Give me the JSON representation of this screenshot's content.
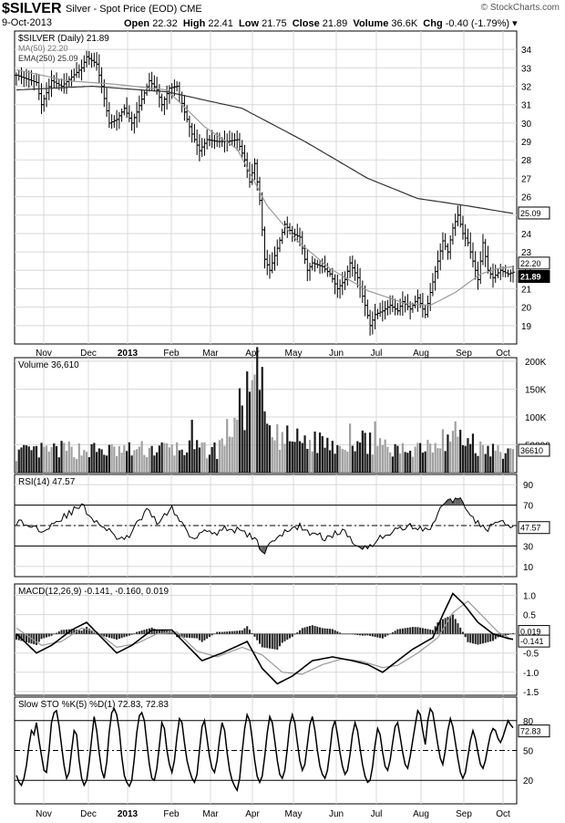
{
  "header": {
    "symbol": "$SILVER",
    "description": "Silver - Spot Price (EOD)",
    "exchange": "CME",
    "date": "9-Oct-2013",
    "open_label": "Open",
    "open": "22.32",
    "high_label": "High",
    "high": "22.41",
    "low_label": "Low",
    "low": "21.75",
    "close_label": "Close",
    "close": "21.89",
    "volume_label": "Volume",
    "volume": "36.6K",
    "chg_label": "Chg",
    "chg": "-0.40 (-1.79%)",
    "credit": "© StockCharts.com"
  },
  "colors": {
    "price": "#000000",
    "ma50": "#9a9a9a",
    "ema250": "#333333",
    "volume_up": "#a0a0a0",
    "volume_down": "#1a1a1a",
    "rsi_fill": "#666666",
    "grid": "#d8d8d8"
  },
  "chart_data": [
    {
      "type": "line",
      "title": "$SILVER (Daily) 21.89",
      "legend": [
        "MA(50) 22.20",
        "EMA(250) 25.09"
      ],
      "ylim": [
        18,
        35
      ],
      "yticks": [
        19,
        20,
        21,
        22,
        23,
        24,
        25,
        26,
        27,
        28,
        29,
        30,
        31,
        32,
        33,
        34
      ],
      "x_month_labels": [
        "Nov",
        "Dec",
        "2013",
        "Feb",
        "Mar",
        "Apr",
        "May",
        "Jun",
        "Jul",
        "Aug",
        "Sep",
        "Oct"
      ],
      "price_anchors": [
        [
          0,
          32.6
        ],
        [
          8,
          32.2
        ],
        [
          10,
          31.0
        ],
        [
          14,
          32.3
        ],
        [
          18,
          32.0
        ],
        [
          22,
          32.5
        ],
        [
          26,
          33.0
        ],
        [
          28,
          33.6
        ],
        [
          32,
          33.2
        ],
        [
          34,
          32.0
        ],
        [
          37,
          30.0
        ],
        [
          40,
          30.2
        ],
        [
          43,
          30.8
        ],
        [
          46,
          30.0
        ],
        [
          48,
          30.6
        ],
        [
          50,
          31.3
        ],
        [
          53,
          32.3
        ],
        [
          56,
          31.8
        ],
        [
          58,
          31.0
        ],
        [
          61,
          31.9
        ],
        [
          64,
          32.0
        ],
        [
          67,
          30.6
        ],
        [
          70,
          29.4
        ],
        [
          73,
          28.5
        ],
        [
          76,
          29.1
        ],
        [
          80,
          29.0
        ],
        [
          84,
          29.0
        ],
        [
          88,
          29.1
        ],
        [
          91,
          28.0
        ],
        [
          93,
          26.8
        ],
        [
          95,
          27.8
        ],
        [
          97,
          25.8
        ],
        [
          99,
          22.6
        ],
        [
          101,
          22.0
        ],
        [
          104,
          23.2
        ],
        [
          107,
          24.5
        ],
        [
          110,
          24.0
        ],
        [
          113,
          23.8
        ],
        [
          116,
          22.0
        ],
        [
          118,
          22.4
        ],
        [
          120,
          22.3
        ],
        [
          122,
          22.2
        ],
        [
          125,
          21.8
        ],
        [
          128,
          21.0
        ],
        [
          131,
          21.5
        ],
        [
          133,
          22.4
        ],
        [
          136,
          21.6
        ],
        [
          139,
          20.1
        ],
        [
          141,
          19.0
        ],
        [
          143,
          19.6
        ],
        [
          146,
          19.8
        ],
        [
          149,
          20.1
        ],
        [
          152,
          19.8
        ],
        [
          154,
          20.3
        ],
        [
          157,
          19.9
        ],
        [
          160,
          20.5
        ],
        [
          163,
          19.6
        ],
        [
          165,
          20.8
        ],
        [
          168,
          22.5
        ],
        [
          170,
          23.6
        ],
        [
          172,
          23.0
        ],
        [
          174,
          24.3
        ],
        [
          176,
          25.0
        ],
        [
          178,
          24.0
        ],
        [
          180,
          23.5
        ],
        [
          182,
          22.5
        ],
        [
          184,
          21.5
        ],
        [
          186,
          23.5
        ],
        [
          188,
          22.0
        ],
        [
          190,
          21.6
        ],
        [
          193,
          22.0
        ],
        [
          196,
          21.8
        ],
        [
          198,
          21.9
        ]
      ],
      "ma50_anchors": [
        [
          0,
          32.9
        ],
        [
          20,
          32.3
        ],
        [
          40,
          32.1
        ],
        [
          60,
          31.8
        ],
        [
          75,
          29.8
        ],
        [
          88,
          28.6
        ],
        [
          100,
          25.5
        ],
        [
          112,
          23.6
        ],
        [
          125,
          22.1
        ],
        [
          140,
          20.9
        ],
        [
          155,
          20.2
        ],
        [
          165,
          20.1
        ],
        [
          175,
          20.8
        ],
        [
          185,
          21.8
        ],
        [
          192,
          22.1
        ],
        [
          198,
          22.2
        ]
      ],
      "ema250_anchors": [
        [
          0,
          31.8
        ],
        [
          30,
          32.0
        ],
        [
          60,
          31.7
        ],
        [
          90,
          30.8
        ],
        [
          115,
          29.0
        ],
        [
          140,
          27.0
        ],
        [
          160,
          25.9
        ],
        [
          180,
          25.5
        ],
        [
          198,
          25.09
        ]
      ],
      "last_labels": [
        "25.09",
        "22.20",
        "21.89"
      ]
    },
    {
      "type": "bar",
      "title": "Volume 36,610",
      "yticks": [
        "200K",
        "150K",
        "100K",
        "50000"
      ],
      "ylim": [
        0,
        200000
      ],
      "value_anchors": [
        [
          0,
          38000
        ],
        [
          20,
          45000
        ],
        [
          40,
          42000
        ],
        [
          60,
          47000
        ],
        [
          80,
          44000
        ],
        [
          98,
          190000
        ],
        [
          100,
          70000
        ],
        [
          120,
          58000
        ],
        [
          140,
          60000
        ],
        [
          150,
          40000
        ],
        [
          160,
          52000
        ],
        [
          175,
          70000
        ],
        [
          185,
          45000
        ],
        [
          198,
          36610
        ]
      ],
      "spikes": [
        [
          70,
          95000
        ],
        [
          98,
          190000
        ],
        [
          99,
          110000
        ],
        [
          101,
          85000
        ],
        [
          121,
          72000
        ],
        [
          133,
          88000
        ],
        [
          141,
          72000
        ],
        [
          143,
          92000
        ],
        [
          170,
          78000
        ],
        [
          175,
          92000
        ],
        [
          182,
          70000
        ]
      ],
      "last_label": "36610"
    },
    {
      "type": "line",
      "title": "RSI(14) 47.57",
      "ylim": [
        0,
        100
      ],
      "yticks": [
        10,
        30,
        50,
        70,
        90
      ],
      "bands": [
        30,
        70
      ],
      "anchors": [
        [
          0,
          54
        ],
        [
          10,
          46
        ],
        [
          20,
          60
        ],
        [
          26,
          70
        ],
        [
          30,
          58
        ],
        [
          38,
          42
        ],
        [
          43,
          34
        ],
        [
          47,
          48
        ],
        [
          52,
          64
        ],
        [
          56,
          54
        ],
        [
          62,
          66
        ],
        [
          66,
          52
        ],
        [
          70,
          38
        ],
        [
          75,
          46
        ],
        [
          80,
          44
        ],
        [
          85,
          48
        ],
        [
          91,
          42
        ],
        [
          95,
          38
        ],
        [
          98,
          22
        ],
        [
          102,
          36
        ],
        [
          108,
          44
        ],
        [
          113,
          50
        ],
        [
          118,
          41
        ],
        [
          124,
          38
        ],
        [
          130,
          45
        ],
        [
          136,
          30
        ],
        [
          141,
          30
        ],
        [
          146,
          40
        ],
        [
          152,
          46
        ],
        [
          158,
          50
        ],
        [
          164,
          44
        ],
        [
          168,
          62
        ],
        [
          172,
          74
        ],
        [
          176,
          77
        ],
        [
          180,
          66
        ],
        [
          184,
          52
        ],
        [
          188,
          46
        ],
        [
          192,
          54
        ],
        [
          196,
          50
        ],
        [
          198,
          47.57
        ]
      ],
      "last_label": "47.57"
    },
    {
      "type": "line",
      "title": "MACD(12,26,9) -0.141, -0.160, 0.019",
      "ylim": [
        -1.6,
        1.3
      ],
      "yticks": [
        1.0,
        0.5,
        0.0,
        -0.5,
        -1.0,
        -1.5
      ],
      "macd_anchors": [
        [
          0,
          0.0
        ],
        [
          8,
          -0.5
        ],
        [
          14,
          -0.3
        ],
        [
          22,
          0.1
        ],
        [
          28,
          0.3
        ],
        [
          34,
          -0.1
        ],
        [
          40,
          -0.5
        ],
        [
          46,
          -0.3
        ],
        [
          54,
          0.1
        ],
        [
          62,
          0.1
        ],
        [
          68,
          -0.3
        ],
        [
          74,
          -0.7
        ],
        [
          82,
          -0.5
        ],
        [
          92,
          -0.2
        ],
        [
          98,
          -0.9
        ],
        [
          104,
          -1.3
        ],
        [
          110,
          -1.1
        ],
        [
          118,
          -0.7
        ],
        [
          126,
          -0.6
        ],
        [
          134,
          -0.7
        ],
        [
          140,
          -0.8
        ],
        [
          146,
          -1.0
        ],
        [
          150,
          -0.8
        ],
        [
          158,
          -0.4
        ],
        [
          166,
          -0.1
        ],
        [
          170,
          0.5
        ],
        [
          174,
          1.05
        ],
        [
          178,
          0.8
        ],
        [
          184,
          0.3
        ],
        [
          190,
          0.0
        ],
        [
          196,
          -0.12
        ],
        [
          198,
          -0.141
        ]
      ],
      "signal_anchors": [
        [
          0,
          0.15
        ],
        [
          10,
          -0.3
        ],
        [
          18,
          -0.2
        ],
        [
          26,
          0.15
        ],
        [
          32,
          0.05
        ],
        [
          40,
          -0.35
        ],
        [
          48,
          -0.25
        ],
        [
          56,
          0.0
        ],
        [
          64,
          0.05
        ],
        [
          72,
          -0.45
        ],
        [
          80,
          -0.6
        ],
        [
          90,
          -0.35
        ],
        [
          98,
          -0.55
        ],
        [
          106,
          -1.0
        ],
        [
          114,
          -1.05
        ],
        [
          122,
          -0.8
        ],
        [
          130,
          -0.65
        ],
        [
          138,
          -0.72
        ],
        [
          146,
          -0.88
        ],
        [
          152,
          -0.82
        ],
        [
          160,
          -0.5
        ],
        [
          168,
          -0.1
        ],
        [
          174,
          0.55
        ],
        [
          180,
          0.85
        ],
        [
          186,
          0.45
        ],
        [
          192,
          0.05
        ],
        [
          198,
          -0.16
        ]
      ],
      "last_labels": [
        "0.019",
        "-0.141"
      ]
    },
    {
      "type": "line",
      "title": "Slow STO %K(5) %D(1) 72.83, 72.83",
      "ylim": [
        0,
        100
      ],
      "yticks": [
        20,
        50,
        80
      ],
      "bands": [
        20,
        80
      ],
      "values": [
        25,
        18,
        15,
        22,
        35,
        55,
        70,
        66,
        78,
        60,
        45,
        30,
        28,
        50,
        78,
        88,
        90,
        75,
        55,
        35,
        22,
        28,
        50,
        70,
        66,
        40,
        22,
        15,
        20,
        38,
        62,
        84,
        70,
        48,
        30,
        22,
        38,
        68,
        88,
        92,
        86,
        70,
        44,
        25,
        18,
        14,
        20,
        42,
        68,
        85,
        88,
        80,
        58,
        36,
        22,
        20,
        32,
        55,
        78,
        72,
        50,
        36,
        28,
        40,
        64,
        82,
        78,
        58,
        40,
        30,
        22,
        18,
        26,
        50,
        74,
        80,
        62,
        44,
        32,
        28,
        40,
        62,
        78,
        70,
        48,
        30,
        20,
        14,
        10,
        22,
        48,
        72,
        86,
        80,
        62,
        40,
        24,
        18,
        24,
        44,
        68,
        84,
        78,
        60,
        40,
        26,
        22,
        30,
        52,
        76,
        86,
        78,
        58,
        40,
        30,
        36,
        56,
        76,
        84,
        70,
        50,
        34,
        26,
        22,
        30,
        50,
        72,
        80,
        66,
        48,
        34,
        26,
        30,
        46,
        66,
        78,
        70,
        52,
        36,
        24,
        18,
        20,
        34,
        56,
        72,
        66,
        48,
        34,
        30,
        40,
        58,
        74,
        78,
        64,
        48,
        36,
        32,
        44,
        60,
        76,
        90,
        86,
        70,
        56,
        80,
        92,
        88,
        72,
        56,
        42,
        36,
        50,
        70,
        82,
        74,
        58,
        42,
        28,
        22,
        28,
        44,
        60,
        70,
        62,
        48,
        36,
        32,
        40,
        54,
        66,
        72,
        70,
        62,
        58,
        64,
        72,
        80,
        76,
        72.83
      ],
      "last_label": "72.83"
    }
  ]
}
